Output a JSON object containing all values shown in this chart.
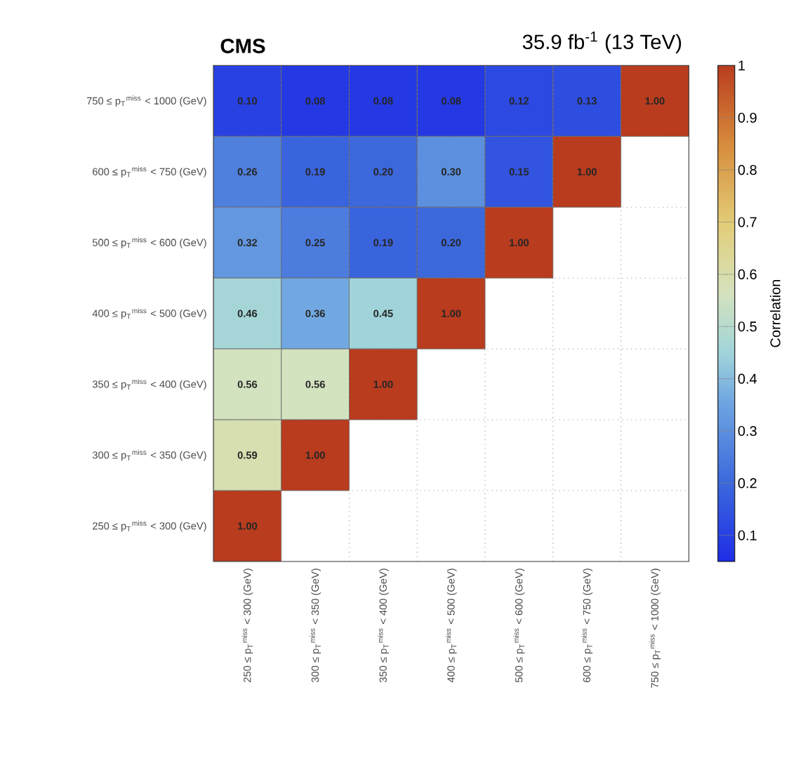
{
  "chart_data": {
    "type": "heatmap",
    "title": "CMS",
    "subtitle": "35.9 fb$^{-1}$ (13 TeV)",
    "clabel": "Correlation",
    "categories": [
      "250 ≤ p$_{T}$$^{miss}$ < 300 (GeV)",
      "300 ≤ p$_{T}$$^{miss}$ < 350 (GeV)",
      "350 ≤ p$_{T}$$^{miss}$ < 400 (GeV)",
      "400 ≤ p$_{T}$$^{miss}$ < 500 (GeV)",
      "500 ≤ p$_{T}$$^{miss}$ < 600 (GeV)",
      "600 ≤ p$_{T}$$^{miss}$ < 750 (GeV)",
      "750 ≤ p$_{T}$$^{miss}$ < 1000 (GeV)"
    ],
    "y_categories": [
      "750 ≤ p$_{T}$$^{miss}$ < 1000 (GeV)",
      "600 ≤ p$_{T}$$^{miss}$ < 750 (GeV)",
      "500 ≤ p$_{T}$$^{miss}$ < 600 (GeV)",
      "400 ≤ p$_{T}$$^{miss}$ < 500 (GeV)",
      "350 ≤ p$_{T}$$^{miss}$ < 400 (GeV)",
      "300 ≤ p$_{T}$$^{miss}$ < 350 (GeV)",
      "250 ≤ p$_{T}$$^{miss}$ < 300 (GeV)"
    ],
    "cells": [
      [
        0.1,
        0.08,
        0.08,
        0.08,
        0.12,
        0.13,
        1.0
      ],
      [
        0.26,
        0.19,
        0.2,
        0.3,
        0.15,
        1.0,
        null
      ],
      [
        0.32,
        0.25,
        0.19,
        0.2,
        1.0,
        null,
        null
      ],
      [
        0.46,
        0.36,
        0.45,
        1.0,
        null,
        null,
        null
      ],
      [
        0.56,
        0.56,
        1.0,
        null,
        null,
        null,
        null
      ],
      [
        0.59,
        1.0,
        null,
        null,
        null,
        null,
        null
      ],
      [
        1.0,
        null,
        null,
        null,
        null,
        null,
        null
      ]
    ],
    "cell_labels": [
      [
        "0.10",
        "0.08",
        "0.08",
        "0.08",
        "0.12",
        "0.13",
        "1.00"
      ],
      [
        "0.26",
        "0.19",
        "0.20",
        "0.30",
        "0.15",
        "1.00",
        null
      ],
      [
        "0.32",
        "0.25",
        "0.19",
        "0.20",
        "1.00",
        null,
        null
      ],
      [
        "0.46",
        "0.36",
        "0.45",
        "1.00",
        null,
        null,
        null
      ],
      [
        "0.56",
        "0.56",
        "1.00",
        null,
        null,
        null,
        null
      ],
      [
        "0.59",
        "1.00",
        null,
        null,
        null,
        null,
        null
      ],
      [
        "1.00",
        null,
        null,
        null,
        null,
        null,
        null
      ]
    ],
    "clim": [
      0.05,
      1
    ],
    "cticks": [
      0.1,
      0.2,
      0.3,
      0.4,
      0.5,
      0.6,
      0.7,
      0.8,
      0.9,
      1
    ],
    "grid": true
  }
}
